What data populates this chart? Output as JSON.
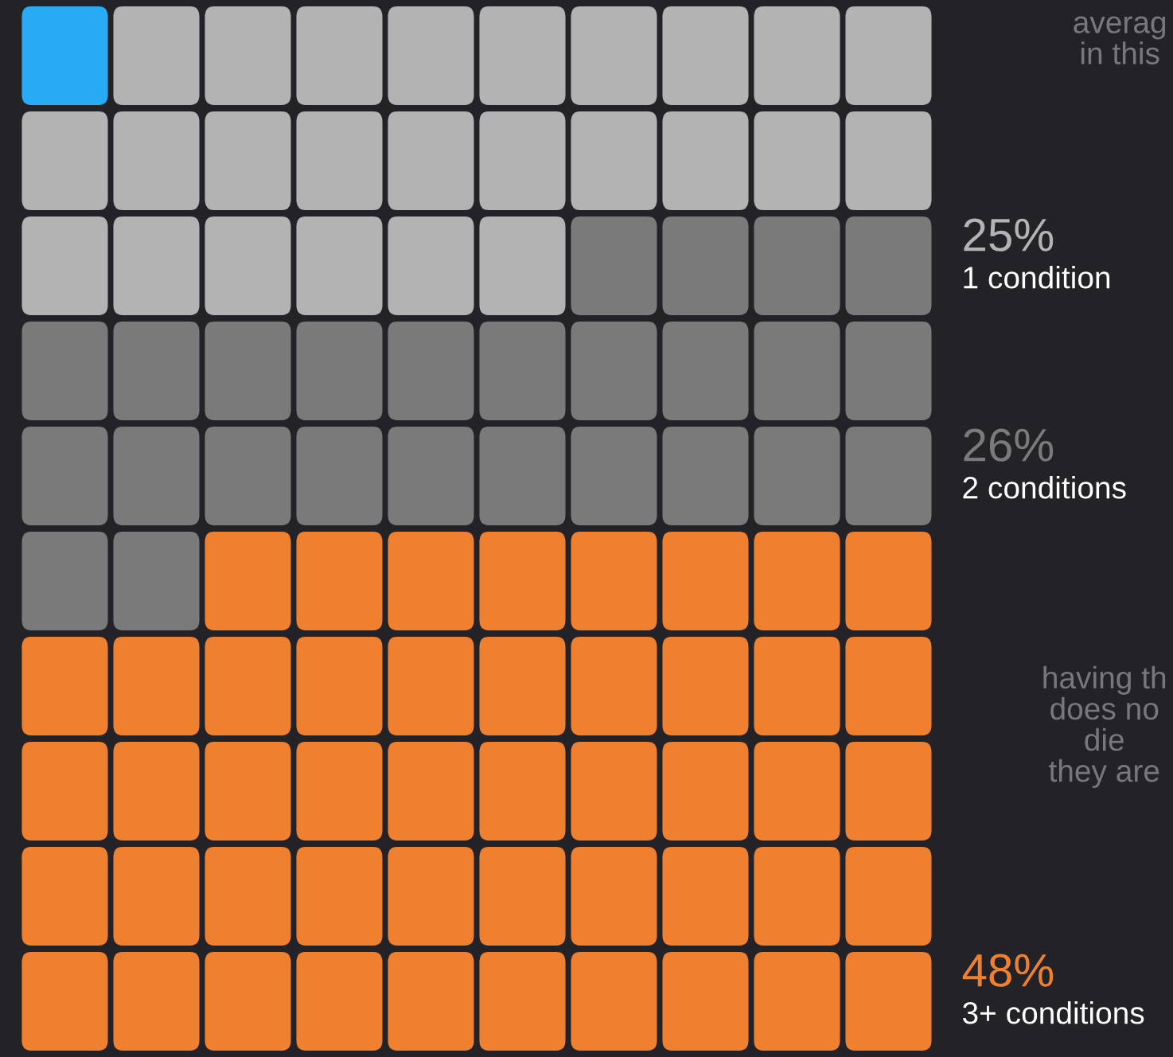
{
  "chart_data": {
    "type": "other",
    "categories": [
      "1 condition",
      "2 conditions",
      "3+ conditions"
    ],
    "values": [
      25,
      26,
      48
    ],
    "value_labels": [
      "25%",
      "26%",
      "48%"
    ],
    "colors": [
      "#b3b3b3",
      "#7a7a7a",
      "#ef8030"
    ],
    "annotations": [
      "averag\nin this",
      "having th\ndoes no\ndie\nthey are"
    ]
  }
}
